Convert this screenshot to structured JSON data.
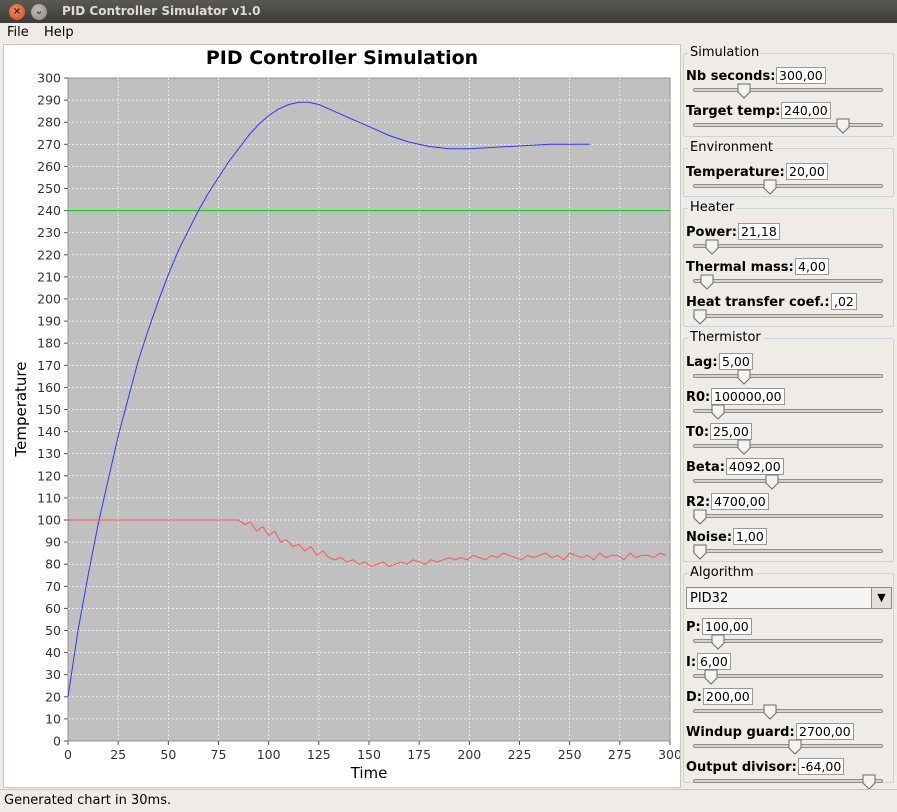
{
  "window": {
    "title": "PID Controller Simulator v1.0",
    "close_glyph": "×",
    "min_glyph": "⌄"
  },
  "menu": {
    "file": "File",
    "help": "Help"
  },
  "chart_data": {
    "type": "line",
    "title": "PID Controller Simulation",
    "xlabel": "Time",
    "ylabel": "Temperature",
    "xlim": [
      0,
      300
    ],
    "ylim": [
      0,
      300
    ],
    "x_ticks": [
      0,
      25,
      50,
      75,
      100,
      125,
      150,
      175,
      200,
      225,
      250,
      275,
      300
    ],
    "y_ticks": [
      0,
      10,
      20,
      30,
      40,
      50,
      60,
      70,
      80,
      90,
      100,
      110,
      120,
      130,
      140,
      150,
      160,
      170,
      180,
      190,
      200,
      210,
      220,
      230,
      240,
      250,
      260,
      270,
      280,
      290,
      300
    ],
    "grid": true,
    "series": [
      {
        "color": "#00cc00",
        "x": [
          0,
          300
        ],
        "y": [
          240,
          240
        ]
      },
      {
        "color": "#3333ff",
        "x": [
          0,
          5,
          10,
          15,
          20,
          25,
          30,
          35,
          40,
          45,
          50,
          55,
          60,
          65,
          70,
          75,
          80,
          85,
          90,
          95,
          100,
          105,
          110,
          115,
          120,
          125,
          130,
          140,
          150,
          160,
          170,
          175,
          180,
          190,
          200,
          210,
          220,
          230,
          240,
          250,
          255,
          260
        ],
        "y": [
          20,
          50,
          75,
          98,
          118,
          138,
          155,
          172,
          186,
          199,
          211,
          222,
          231,
          240,
          248,
          255,
          262,
          268,
          274,
          279,
          283,
          286,
          288,
          289,
          289,
          288,
          286,
          282,
          278,
          274,
          271,
          270,
          269,
          268,
          268,
          268.5,
          269,
          269.5,
          270,
          270,
          270,
          270
        ]
      },
      {
        "color": "#ff5555",
        "x": [
          0,
          85,
          88,
          91,
          94,
          97,
          100,
          103,
          106,
          109,
          112,
          115,
          118,
          121,
          124,
          127,
          130,
          133,
          136,
          139,
          142,
          145,
          148,
          151,
          154,
          157,
          160,
          163,
          166,
          169,
          172,
          175,
          178,
          181,
          184,
          187,
          190,
          193,
          196,
          199,
          202,
          205,
          208,
          211,
          214,
          217,
          220,
          223,
          226,
          229,
          232,
          235,
          238,
          241,
          244,
          247,
          250,
          253,
          256,
          259,
          262,
          265,
          268,
          271,
          274,
          277,
          280,
          283,
          286,
          289,
          292,
          295,
          298
        ],
        "y": [
          100,
          100,
          98,
          99,
          95,
          97,
          93,
          95,
          90,
          91,
          88,
          89,
          86,
          88,
          84,
          86,
          83,
          82,
          83,
          81,
          82,
          80,
          81,
          79,
          80,
          81,
          79,
          80,
          81,
          80,
          82,
          81,
          80,
          82,
          81,
          82,
          83,
          82,
          83,
          82,
          84,
          83,
          82,
          84,
          83,
          85,
          84,
          83,
          82,
          84,
          83,
          84,
          85,
          83,
          84,
          82,
          85,
          84,
          83,
          84,
          82,
          85,
          83,
          84,
          84,
          82,
          85,
          83,
          84,
          84,
          83,
          85,
          84
        ]
      }
    ]
  },
  "groups": {
    "simulation": {
      "title": "Simulation",
      "params": [
        {
          "label": "Nb seconds:",
          "value": "300,00",
          "level": 0.25
        },
        {
          "label": "Target temp:",
          "value": "240,00",
          "level": 0.81
        }
      ]
    },
    "environment": {
      "title": "Environment",
      "params": [
        {
          "label": "Temperature:",
          "value": "20,00",
          "level": 0.4
        }
      ]
    },
    "heater": {
      "title": "Heater",
      "params": [
        {
          "label": "Power:",
          "value": "21,18",
          "level": 0.07
        },
        {
          "label": "Thermal mass:",
          "value": "4,00",
          "level": 0.04
        },
        {
          "label": "Heat transfer coef.:",
          "value": ",02",
          "level": 0.0
        }
      ]
    },
    "thermistor": {
      "title": "Thermistor",
      "params": [
        {
          "label": "Lag:",
          "value": "5,00",
          "level": 0.25
        },
        {
          "label": "R0:",
          "value": "100000,00",
          "level": 0.1
        },
        {
          "label": "T0:",
          "value": "25,00",
          "level": 0.25
        },
        {
          "label": "Beta:",
          "value": "4092,00",
          "level": 0.41
        },
        {
          "label": "R2:",
          "value": "4700,00",
          "level": 0.0
        },
        {
          "label": "Noise:",
          "value": "1,00",
          "level": 0.0
        }
      ]
    },
    "algorithm": {
      "title": "Algorithm",
      "selected": "PID32",
      "params": [
        {
          "label": "P:",
          "value": "100,00",
          "level": 0.1
        },
        {
          "label": "I:",
          "value": "6,00",
          "level": 0.06
        },
        {
          "label": "D:",
          "value": "200,00",
          "level": 0.4
        },
        {
          "label": "Windup guard:",
          "value": "2700,00",
          "level": 0.54
        },
        {
          "label": "Output divisor:",
          "value": "-64,00",
          "level": 0.96
        }
      ]
    }
  },
  "status": {
    "text": "Generated chart in 30ms."
  },
  "icons": {
    "dropdown": "▼"
  }
}
